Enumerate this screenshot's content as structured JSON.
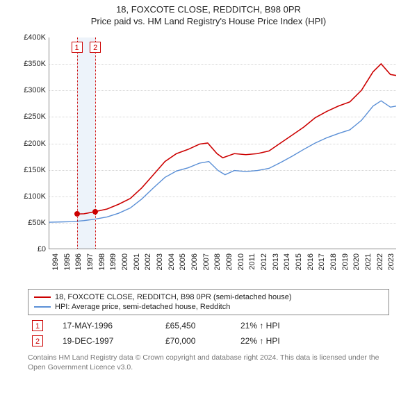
{
  "title": "18, FOXCOTE CLOSE, REDDITCH, B98 0PR",
  "subtitle": "Price paid vs. HM Land Registry's House Price Index (HPI)",
  "chart": {
    "type": "line",
    "background_color": "#ffffff",
    "grid_color": "#d4d4d4",
    "axis_color": "#888888",
    "title_fontsize": 13,
    "label_fontsize": 11,
    "x": {
      "min": 1994,
      "max": 2024,
      "ticks": [
        1994,
        1995,
        1996,
        1997,
        1998,
        1999,
        2000,
        2001,
        2002,
        2003,
        2004,
        2005,
        2006,
        2007,
        2008,
        2009,
        2010,
        2011,
        2012,
        2013,
        2014,
        2015,
        2016,
        2017,
        2018,
        2019,
        2020,
        2021,
        2022,
        2023
      ]
    },
    "y": {
      "min": 0,
      "max": 400000,
      "tick_step": 50000,
      "tick_labels": [
        "£0",
        "£50K",
        "£100K",
        "£150K",
        "£200K",
        "£250K",
        "£300K",
        "£350K",
        "£400K"
      ]
    },
    "highlight_band": {
      "from": 1996.37,
      "to": 1997.97,
      "fill": "#edf3fa"
    },
    "sale_markers": [
      {
        "index": "1",
        "x": 1996.37,
        "y": 65450
      },
      {
        "index": "2",
        "x": 1997.97,
        "y": 70000
      }
    ],
    "series": [
      {
        "name": "18, FOXCOTE CLOSE, REDDITCH, B98 0PR (semi-detached house)",
        "color": "#cc0000",
        "line_width": 1.6,
        "points": [
          [
            1996.37,
            65450
          ],
          [
            1997.0,
            66000
          ],
          [
            1997.97,
            70000
          ],
          [
            1999.0,
            75000
          ],
          [
            2000.0,
            84000
          ],
          [
            2001.0,
            95000
          ],
          [
            2002.0,
            115000
          ],
          [
            2003.0,
            140000
          ],
          [
            2004.0,
            165000
          ],
          [
            2005.0,
            180000
          ],
          [
            2006.0,
            188000
          ],
          [
            2007.0,
            198000
          ],
          [
            2007.7,
            200000
          ],
          [
            2008.5,
            180000
          ],
          [
            2009.0,
            172000
          ],
          [
            2010.0,
            180000
          ],
          [
            2011.0,
            178000
          ],
          [
            2012.0,
            180000
          ],
          [
            2013.0,
            185000
          ],
          [
            2014.0,
            200000
          ],
          [
            2015.0,
            215000
          ],
          [
            2016.0,
            230000
          ],
          [
            2017.0,
            248000
          ],
          [
            2018.0,
            260000
          ],
          [
            2019.0,
            270000
          ],
          [
            2020.0,
            278000
          ],
          [
            2021.0,
            300000
          ],
          [
            2022.0,
            335000
          ],
          [
            2022.7,
            350000
          ],
          [
            2023.5,
            330000
          ],
          [
            2024.0,
            328000
          ]
        ]
      },
      {
        "name": "HPI: Average price, semi-detached house, Redditch",
        "color": "#5a8fd6",
        "line_width": 1.4,
        "points": [
          [
            1994.0,
            50000
          ],
          [
            1995.0,
            50500
          ],
          [
            1996.0,
            51000
          ],
          [
            1997.0,
            53000
          ],
          [
            1998.0,
            56000
          ],
          [
            1999.0,
            60000
          ],
          [
            2000.0,
            67000
          ],
          [
            2001.0,
            77000
          ],
          [
            2002.0,
            94000
          ],
          [
            2003.0,
            115000
          ],
          [
            2004.0,
            135000
          ],
          [
            2005.0,
            147000
          ],
          [
            2006.0,
            153000
          ],
          [
            2007.0,
            162000
          ],
          [
            2007.8,
            165000
          ],
          [
            2008.6,
            148000
          ],
          [
            2009.2,
            140000
          ],
          [
            2010.0,
            148000
          ],
          [
            2011.0,
            146000
          ],
          [
            2012.0,
            148000
          ],
          [
            2013.0,
            152000
          ],
          [
            2014.0,
            163000
          ],
          [
            2015.0,
            175000
          ],
          [
            2016.0,
            188000
          ],
          [
            2017.0,
            200000
          ],
          [
            2018.0,
            210000
          ],
          [
            2019.0,
            218000
          ],
          [
            2020.0,
            225000
          ],
          [
            2021.0,
            243000
          ],
          [
            2022.0,
            270000
          ],
          [
            2022.7,
            280000
          ],
          [
            2023.5,
            268000
          ],
          [
            2024.0,
            270000
          ]
        ]
      }
    ]
  },
  "legend": {
    "items": [
      {
        "color": "#cc0000",
        "label": "18, FOXCOTE CLOSE, REDDITCH, B98 0PR (semi-detached house)"
      },
      {
        "color": "#5a8fd6",
        "label": "HPI: Average price, semi-detached house, Redditch"
      }
    ]
  },
  "sales": [
    {
      "index": "1",
      "date": "17-MAY-1996",
      "price": "£65,450",
      "diff": "21% ↑ HPI"
    },
    {
      "index": "2",
      "date": "19-DEC-1997",
      "price": "£70,000",
      "diff": "22% ↑ HPI"
    }
  ],
  "attribution": "Contains HM Land Registry data © Crown copyright and database right 2024. This data is licensed under the Open Government Licence v3.0."
}
